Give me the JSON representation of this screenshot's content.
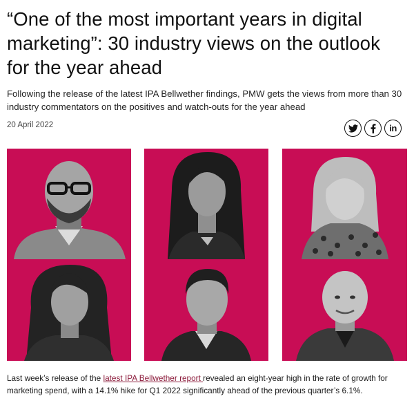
{
  "article": {
    "headline": "“One of the most important years in digital marketing”: 30 industry views on the outlook for the year ahead",
    "standfirst": "Following the release of the latest IPA Bellwether findings, PMW gets the views from more than 30 industry commentators on the positives and watch-outs for the year ahead",
    "date": "20 April 2022",
    "body": {
      "before_link": "Last week’s release of the ",
      "link_text": "latest IPA Bellwether report ",
      "after_link": "revealed an eight-year high in the rate of growth for marketing spend, with a 14.1% hike for Q1 2022 significantly ahead of the previous quarter’s 6.1%."
    }
  },
  "share": {
    "icons": [
      "twitter-icon",
      "facebook-icon",
      "linkedin-icon"
    ],
    "linkedin_glyph": "in"
  },
  "hero": {
    "background_color": "#c80d55",
    "portraits": [
      "bald-man-glasses-beard",
      "woman-long-dark-hair",
      "woman-blonde-leopard-top",
      "woman-long-wavy-hair",
      "man-short-dark-hair",
      "bald-man-dark-jacket"
    ]
  }
}
